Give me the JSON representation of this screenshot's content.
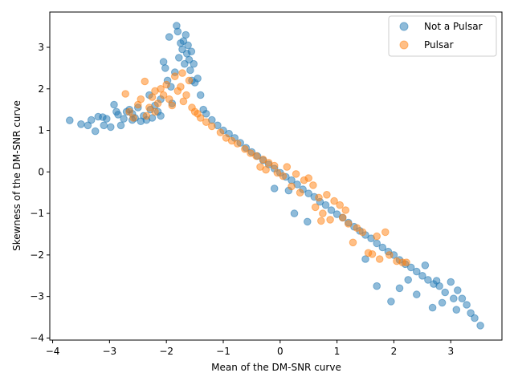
{
  "chart_data": {
    "type": "scatter",
    "title": "",
    "xlabel": "Mean of the DM-SNR curve",
    "ylabel": "Skewness of the DM-SNR curve",
    "xlim": [
      -4.05,
      3.9
    ],
    "ylim": [
      -4.05,
      3.85
    ],
    "xticks": [
      -4,
      -3,
      -2,
      -1,
      0,
      1,
      2,
      3
    ],
    "yticks": [
      -4,
      -3,
      -2,
      -1,
      0,
      1,
      2,
      3
    ],
    "grid": false,
    "legend_position": "top-right",
    "series": [
      {
        "name": "Not a Pulsar",
        "color": "#1f77b4",
        "opacity": 0.5,
        "points": [
          [
            -3.7,
            1.24
          ],
          [
            -3.5,
            1.15
          ],
          [
            -3.38,
            1.12
          ],
          [
            -3.25,
            0.98
          ],
          [
            -3.32,
            1.25
          ],
          [
            -3.2,
            1.33
          ],
          [
            -3.12,
            1.32
          ],
          [
            -3.1,
            1.12
          ],
          [
            -3.05,
            1.28
          ],
          [
            -2.98,
            1.08
          ],
          [
            -2.92,
            1.62
          ],
          [
            -2.88,
            1.45
          ],
          [
            -2.85,
            1.38
          ],
          [
            -2.8,
            1.12
          ],
          [
            -2.75,
            1.28
          ],
          [
            -2.65,
            1.5
          ],
          [
            -2.6,
            1.4
          ],
          [
            -2.55,
            1.3
          ],
          [
            -2.45,
            1.22
          ],
          [
            -2.4,
            1.35
          ],
          [
            -2.35,
            1.25
          ],
          [
            -2.28,
            1.5
          ],
          [
            -2.25,
            1.3
          ],
          [
            -2.2,
            1.6
          ],
          [
            -2.15,
            1.45
          ],
          [
            -2.1,
            1.35
          ],
          [
            -2.05,
            2.65
          ],
          [
            -2.02,
            2.5
          ],
          [
            -1.98,
            2.2
          ],
          [
            -1.95,
            3.25
          ],
          [
            -1.92,
            2.05
          ],
          [
            -1.85,
            2.4
          ],
          [
            -1.82,
            3.52
          ],
          [
            -1.8,
            3.38
          ],
          [
            -1.78,
            2.75
          ],
          [
            -1.75,
            3.1
          ],
          [
            -1.72,
            2.95
          ],
          [
            -1.7,
            3.15
          ],
          [
            -1.68,
            2.6
          ],
          [
            -1.66,
            3.3
          ],
          [
            -1.64,
            2.85
          ],
          [
            -1.62,
            3.05
          ],
          [
            -1.6,
            2.7
          ],
          [
            -1.58,
            2.45
          ],
          [
            -1.56,
            2.9
          ],
          [
            -1.55,
            2.2
          ],
          [
            -1.52,
            2.6
          ],
          [
            -1.5,
            2.15
          ],
          [
            -1.45,
            2.25
          ],
          [
            -1.4,
            1.85
          ],
          [
            -1.35,
            1.5
          ],
          [
            -1.3,
            1.4
          ],
          [
            -1.2,
            1.25
          ],
          [
            -1.1,
            1.12
          ],
          [
            -1.0,
            1.0
          ],
          [
            -0.9,
            0.92
          ],
          [
            -0.8,
            0.82
          ],
          [
            -0.7,
            0.7
          ],
          [
            -0.6,
            0.58
          ],
          [
            -0.5,
            0.48
          ],
          [
            -0.4,
            0.38
          ],
          [
            -0.3,
            0.28
          ],
          [
            -0.2,
            0.18
          ],
          [
            -0.1,
            0.08
          ],
          [
            0.0,
            -0.02
          ],
          [
            0.1,
            -0.12
          ],
          [
            0.2,
            -0.2
          ],
          [
            0.3,
            -0.3
          ],
          [
            0.4,
            -0.42
          ],
          [
            0.5,
            -0.52
          ],
          [
            0.6,
            -0.6
          ],
          [
            0.7,
            -0.72
          ],
          [
            0.8,
            -0.8
          ],
          [
            0.9,
            -0.92
          ],
          [
            1.0,
            -1.02
          ],
          [
            1.1,
            -1.1
          ],
          [
            1.2,
            -1.22
          ],
          [
            1.3,
            -1.32
          ],
          [
            1.4,
            -1.42
          ],
          [
            1.5,
            -1.52
          ],
          [
            1.6,
            -1.6
          ],
          [
            1.7,
            -1.72
          ],
          [
            1.8,
            -1.82
          ],
          [
            1.9,
            -1.92
          ],
          [
            2.0,
            -2.0
          ],
          [
            2.1,
            -2.12
          ],
          [
            2.2,
            -2.22
          ],
          [
            2.3,
            -2.3
          ],
          [
            2.4,
            -2.4
          ],
          [
            2.5,
            -2.5
          ],
          [
            2.6,
            -2.6
          ],
          [
            2.7,
            -2.7
          ],
          [
            2.75,
            -2.62
          ],
          [
            2.8,
            -2.75
          ],
          [
            2.85,
            -3.15
          ],
          [
            2.9,
            -2.9
          ],
          [
            3.0,
            -2.65
          ],
          [
            3.05,
            -3.05
          ],
          [
            3.1,
            -3.32
          ],
          [
            3.12,
            -2.85
          ],
          [
            3.2,
            -3.05
          ],
          [
            3.28,
            -3.2
          ],
          [
            3.35,
            -3.4
          ],
          [
            3.42,
            -3.52
          ],
          [
            3.52,
            -3.7
          ],
          [
            2.68,
            -3.27
          ],
          [
            2.4,
            -2.95
          ],
          [
            1.95,
            -3.12
          ],
          [
            1.7,
            -2.75
          ],
          [
            2.1,
            -2.8
          ],
          [
            0.25,
            -1.0
          ],
          [
            0.48,
            -1.2
          ],
          [
            0.15,
            -0.45
          ],
          [
            -0.1,
            -0.4
          ],
          [
            1.5,
            -2.1
          ],
          [
            2.25,
            -2.6
          ],
          [
            2.55,
            -2.25
          ],
          [
            -2.3,
            1.85
          ],
          [
            -2.1,
            1.75
          ],
          [
            -1.9,
            1.65
          ],
          [
            -2.5,
            1.55
          ],
          [
            -2.7,
            1.45
          ],
          [
            -2.6,
            1.25
          ]
        ]
      },
      {
        "name": "Pulsar",
        "color": "#ff7f0e",
        "opacity": 0.5,
        "points": [
          [
            -2.72,
            1.88
          ],
          [
            -2.65,
            1.45
          ],
          [
            -2.58,
            1.3
          ],
          [
            -2.5,
            1.62
          ],
          [
            -2.45,
            1.75
          ],
          [
            -2.38,
            2.18
          ],
          [
            -2.3,
            1.55
          ],
          [
            -2.25,
            1.8
          ],
          [
            -2.2,
            1.95
          ],
          [
            -2.15,
            1.65
          ],
          [
            -2.1,
            2.0
          ],
          [
            -2.05,
            1.85
          ],
          [
            -2.0,
            2.1
          ],
          [
            -1.95,
            1.75
          ],
          [
            -1.9,
            1.6
          ],
          [
            -1.85,
            2.3
          ],
          [
            -1.8,
            1.95
          ],
          [
            -1.75,
            2.05
          ],
          [
            -1.72,
            2.38
          ],
          [
            -1.7,
            1.7
          ],
          [
            -1.65,
            1.85
          ],
          [
            -1.6,
            2.2
          ],
          [
            -1.55,
            1.55
          ],
          [
            -1.5,
            1.45
          ],
          [
            -1.45,
            1.4
          ],
          [
            -1.4,
            1.3
          ],
          [
            -1.3,
            1.2
          ],
          [
            -1.2,
            1.1
          ],
          [
            -1.05,
            0.95
          ],
          [
            -0.95,
            0.82
          ],
          [
            -0.85,
            0.75
          ],
          [
            -0.75,
            0.68
          ],
          [
            -0.62,
            0.55
          ],
          [
            -0.52,
            0.45
          ],
          [
            -0.42,
            0.38
          ],
          [
            -0.35,
            0.12
          ],
          [
            -0.3,
            0.3
          ],
          [
            -0.25,
            0.05
          ],
          [
            -0.2,
            0.22
          ],
          [
            -0.1,
            0.15
          ],
          [
            -0.05,
            -0.02
          ],
          [
            0.05,
            -0.1
          ],
          [
            0.12,
            0.12
          ],
          [
            0.2,
            -0.35
          ],
          [
            0.28,
            -0.05
          ],
          [
            0.35,
            -0.5
          ],
          [
            0.42,
            -0.2
          ],
          [
            0.5,
            -0.15
          ],
          [
            0.58,
            -0.32
          ],
          [
            0.62,
            -0.85
          ],
          [
            0.68,
            -0.62
          ],
          [
            0.72,
            -1.18
          ],
          [
            0.75,
            -1.0
          ],
          [
            0.82,
            -0.55
          ],
          [
            0.88,
            -1.15
          ],
          [
            0.95,
            -0.7
          ],
          [
            1.05,
            -0.8
          ],
          [
            1.1,
            -1.1
          ],
          [
            1.15,
            -0.92
          ],
          [
            1.2,
            -1.25
          ],
          [
            1.28,
            -1.7
          ],
          [
            1.35,
            -1.35
          ],
          [
            1.45,
            -1.45
          ],
          [
            1.55,
            -1.95
          ],
          [
            1.62,
            -1.98
          ],
          [
            1.7,
            -1.55
          ],
          [
            1.75,
            -2.1
          ],
          [
            1.85,
            -1.45
          ],
          [
            1.92,
            -2.0
          ],
          [
            2.05,
            -2.15
          ],
          [
            2.15,
            -2.18
          ],
          [
            2.22,
            -2.18
          ],
          [
            -2.2,
            1.45
          ],
          [
            -2.35,
            1.35
          ]
        ]
      }
    ]
  }
}
